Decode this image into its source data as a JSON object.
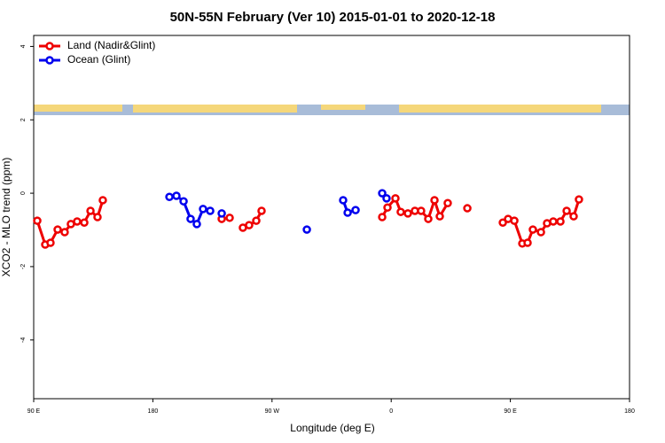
{
  "chart_data": {
    "type": "line",
    "title": "50N-55N February (Ver 10)   2015-01-01 to 2020-12-18",
    "x_label": "Longitude (deg E)",
    "y_label": "XCO2 - MLO trend (ppm)",
    "xlim": [
      90,
      540
    ],
    "xticks": [
      {
        "value": 90,
        "label": "90 E"
      },
      180,
      {
        "value": 270,
        "label": "90 W"
      },
      {
        "value": 360,
        "label": "0"
      },
      {
        "value": 450,
        "label": "90 E"
      },
      {
        "value": 540,
        "label": "180"
      }
    ],
    "ylim": [
      -5.6,
      4.3
    ],
    "yticks": [
      -4,
      -2,
      0,
      2,
      4
    ],
    "legend": "top-left",
    "series": [
      {
        "name": "Land (Nadir&Glint)",
        "color": "#ee0000",
        "x": [
          92.7,
          98.7,
          102.7,
          108.1,
          113.4,
          118.1,
          122.8,
          128.2,
          132.9,
          138.2,
          142.2,
          null,
          232.0,
          null,
          238.0,
          null,
          248.0,
          252.7,
          258.1,
          262.1,
          null,
          353.2,
          357.2,
          363.2,
          367.2,
          372.6,
          377.9,
          382.6,
          388.0,
          392.7,
          396.7,
          402.7,
          null,
          417.5,
          null,
          444.3,
          448.3,
          453.0,
          459.0,
          463.0,
          467.0,
          473.1,
          477.7,
          482.4,
          487.8,
          492.5,
          497.8,
          501.8
        ],
        "values": [
          -0.75,
          -1.4,
          -1.35,
          -0.99,
          -1.06,
          -0.84,
          -0.77,
          -0.8,
          -0.48,
          -0.65,
          -0.19,
          null,
          -0.7,
          null,
          -0.67,
          null,
          -0.94,
          -0.87,
          -0.75,
          -0.48,
          null,
          -0.65,
          -0.39,
          -0.14,
          -0.51,
          -0.55,
          -0.48,
          -0.48,
          -0.7,
          -0.19,
          -0.63,
          -0.27,
          null,
          -0.41,
          null,
          -0.8,
          -0.7,
          -0.75,
          -1.37,
          -1.35,
          -0.99,
          -1.06,
          -0.82,
          -0.77,
          -0.77,
          -0.48,
          -0.63,
          -0.17
        ]
      },
      {
        "name": "Ocean (Glint)",
        "color": "#0000ee",
        "x": [
          192.5,
          197.8,
          203.2,
          208.5,
          213.2,
          217.9,
          223.3,
          null,
          232.0,
          null,
          296.3,
          null,
          323.7,
          327.1,
          333.1,
          null,
          353.2,
          356.5
        ],
        "values": [
          -0.1,
          -0.07,
          -0.22,
          -0.7,
          -0.84,
          -0.43,
          -0.48,
          null,
          -0.55,
          null,
          -0.99,
          null,
          -0.19,
          -0.53,
          -0.46,
          null,
          0.0,
          -0.14
        ]
      }
    ]
  }
}
